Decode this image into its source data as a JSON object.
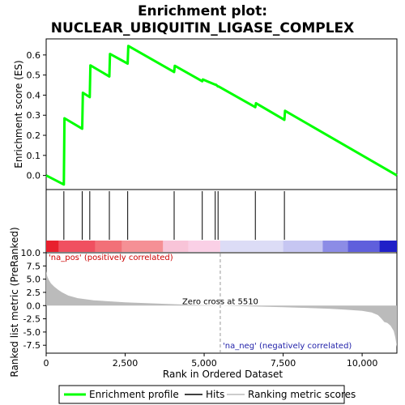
{
  "chart_data": {
    "type": "line",
    "title_line1": "Enrichment plot:",
    "title_line2": "NUCLEAR_UBIQUITIN_LIGASE_COMPLEX",
    "es_panel": {
      "ylabel": "Enrichment score (ES)",
      "ylim": [
        -0.07,
        0.68
      ],
      "yticks": [
        0.0,
        0.1,
        0.2,
        0.3,
        0.4,
        0.5,
        0.6
      ],
      "ytick_labels": [
        "0.0",
        "0.1",
        "0.2",
        "0.3",
        "0.4",
        "0.5",
        "0.6"
      ],
      "series": [
        {
          "name": "Enrichment profile",
          "color": "#00ff00",
          "x": [
            0,
            560,
            580,
            1140,
            1160,
            1380,
            1400,
            2000,
            2020,
            2580,
            2600,
            4050,
            4070,
            4940,
            4960,
            5350,
            5370,
            5440,
            5460,
            6620,
            6640,
            7540,
            7560,
            11100
          ],
          "y": [
            0.0,
            -0.045,
            0.285,
            0.233,
            0.412,
            0.39,
            0.548,
            0.493,
            0.605,
            0.557,
            0.645,
            0.515,
            0.546,
            0.469,
            0.478,
            0.452,
            0.452,
            0.443,
            0.443,
            0.34,
            0.36,
            0.277,
            0.322,
            0.0
          ]
        }
      ]
    },
    "hits": {
      "name": "Hits",
      "positions": [
        560,
        1140,
        1380,
        2000,
        2580,
        4050,
        4940,
        5350,
        5440,
        6620,
        7540
      ]
    },
    "heatmap": {
      "xlim": [
        0,
        11100
      ],
      "segments": [
        {
          "start": 0,
          "end": 400,
          "color": "#e8202e"
        },
        {
          "start": 400,
          "end": 1550,
          "color": "#f05060"
        },
        {
          "start": 1550,
          "end": 2400,
          "color": "#f27078"
        },
        {
          "start": 2400,
          "end": 3700,
          "color": "#f59095"
        },
        {
          "start": 3700,
          "end": 4500,
          "color": "#f8c4d8"
        },
        {
          "start": 4500,
          "end": 5510,
          "color": "#fad0e6"
        },
        {
          "start": 5510,
          "end": 7500,
          "color": "#dcdcf6"
        },
        {
          "start": 7500,
          "end": 8750,
          "color": "#c6c6f2"
        },
        {
          "start": 8750,
          "end": 9550,
          "color": "#8c8ce6"
        },
        {
          "start": 9550,
          "end": 10550,
          "color": "#5f5fdc"
        },
        {
          "start": 10550,
          "end": 11100,
          "color": "#2020c8"
        }
      ]
    },
    "metric_panel": {
      "ylabel": "Ranked list metric (PreRanked)",
      "xlabel": "Rank in Ordered Dataset",
      "ylim": [
        -9.0,
        10.0
      ],
      "yticks": [
        10.0,
        7.5,
        5.0,
        2.5,
        0.0,
        -2.5,
        -5.0,
        -7.5
      ],
      "ytick_labels": [
        "10.0",
        "7.5",
        "5.0",
        "2.5",
        "0.0",
        "-2.5",
        "-5.0",
        "-7.5"
      ],
      "xlim": [
        0,
        11100
      ],
      "xticks": [
        0,
        2500,
        5000,
        7500,
        10000
      ],
      "xtick_labels": [
        "0",
        "2,500",
        "5,000",
        "7,500",
        "10,000"
      ],
      "zero_cross": 5510,
      "zero_cross_label": "Zero cross at 5510",
      "pos_label": "'na_pos' (positively correlated)",
      "neg_label": "'na_neg' (negatively correlated)",
      "series": [
        {
          "name": "Ranking metric scores",
          "color": "#bbbbbb",
          "x": [
            0,
            30,
            80,
            150,
            250,
            380,
            500,
            700,
            1000,
            1500,
            2000,
            2500,
            3000,
            3500,
            4000,
            4500,
            5000,
            5510,
            6000,
            6500,
            7000,
            7500,
            8000,
            8500,
            9000,
            9500,
            10000,
            10300,
            10500,
            10600,
            10700,
            10800,
            10900,
            11000,
            11050,
            11100
          ],
          "y": [
            6.5,
            5.6,
            4.9,
            4.2,
            3.6,
            3.0,
            2.5,
            1.9,
            1.4,
            1.0,
            0.8,
            0.62,
            0.5,
            0.38,
            0.27,
            0.17,
            0.08,
            0.0,
            -0.08,
            -0.15,
            -0.22,
            -0.3,
            -0.4,
            -0.5,
            -0.62,
            -0.78,
            -1.0,
            -1.3,
            -1.8,
            -2.4,
            -3.1,
            -3.3,
            -3.8,
            -4.8,
            -6.0,
            -7.8
          ]
        }
      ]
    },
    "legend": {
      "items": [
        {
          "label": "Enrichment profile",
          "color": "#00ff00"
        },
        {
          "label": "Hits",
          "color": "#000000"
        },
        {
          "label": "Ranking metric scores",
          "color": "#bbbbbb"
        }
      ]
    }
  }
}
